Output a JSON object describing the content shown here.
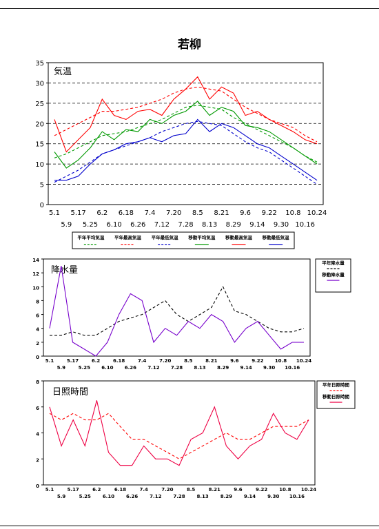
{
  "title": "若柳",
  "chart_data": [
    {
      "type": "line",
      "title": "気温",
      "ylim": [
        0,
        35
      ],
      "yticks": [
        0,
        5,
        10,
        15,
        20,
        25,
        30,
        35
      ],
      "x": [
        "5.1",
        "5.9",
        "5.17",
        "5.25",
        "6.2",
        "6.10",
        "6.18",
        "6.26",
        "7.4",
        "7.12",
        "7.20",
        "7.28",
        "8.5",
        "8.13",
        "8.21",
        "8.29",
        "9.6",
        "9.14",
        "9.22",
        "9.30",
        "10.8",
        "10.16",
        "10.24"
      ],
      "xlabels_row1": [
        "5.1",
        "5.17",
        "6.2",
        "6.18",
        "7.4",
        "7.20",
        "8.5",
        "8.21",
        "9.6",
        "9.22",
        "10.8",
        "10.24"
      ],
      "xlabels_row2": [
        "5.9",
        "5.25",
        "6.10",
        "6.26",
        "7.12",
        "7.28",
        "8.13",
        "8.29",
        "9.14",
        "9.30",
        "10.16"
      ],
      "grid": "horizontal dashed",
      "legend": "bottom",
      "series": [
        {
          "name": "平年平均気温",
          "style": "dashed",
          "color": "#009900",
          "values": [
            11.5,
            12.5,
            14,
            15.5,
            17,
            17.5,
            18,
            19,
            20,
            21,
            22.5,
            24,
            24.5,
            24,
            23.5,
            21.5,
            20,
            18.5,
            17,
            15.5,
            14,
            12,
            10.5
          ]
        },
        {
          "name": "平年最高気温",
          "style": "dashed",
          "color": "#ff0000",
          "values": [
            17,
            18.5,
            20,
            21.5,
            23,
            23,
            23.5,
            24,
            25,
            26,
            27.5,
            28.5,
            29,
            28.5,
            28,
            26,
            24,
            22.5,
            21,
            20,
            19,
            17,
            15.5
          ]
        },
        {
          "name": "平年最低気温",
          "style": "dashed",
          "color": "#0000cc",
          "values": [
            5.5,
            7,
            8.5,
            10.5,
            12.5,
            13.5,
            14.5,
            15.5,
            16.5,
            18,
            19,
            20,
            20.5,
            20,
            19.5,
            17.5,
            15.5,
            14,
            13,
            11,
            9,
            7,
            5
          ]
        },
        {
          "name": "移動平均気温",
          "style": "solid",
          "color": "#009900",
          "values": [
            13,
            9,
            11,
            14,
            18,
            16,
            18.5,
            18,
            21,
            20,
            22,
            23,
            25.5,
            22,
            24,
            23,
            19.5,
            19,
            18,
            16,
            14,
            12,
            10
          ]
        },
        {
          "name": "移動最高気温",
          "style": "solid",
          "color": "#ff0000",
          "values": [
            21,
            13,
            16,
            19,
            26,
            22,
            21,
            23,
            23.5,
            22,
            26,
            28.5,
            31.5,
            26,
            29,
            27.5,
            22,
            23,
            21,
            19.5,
            18,
            16,
            15
          ]
        },
        {
          "name": "移動最低気温",
          "style": "solid",
          "color": "#0000cc",
          "values": [
            6,
            6,
            7,
            10,
            12.5,
            13.5,
            15,
            15.5,
            16.5,
            15.5,
            17,
            17.5,
            21,
            18,
            20,
            19,
            17,
            15,
            14,
            12,
            10,
            8,
            6
          ]
        }
      ]
    },
    {
      "type": "line",
      "title": "降水量",
      "ylim": [
        0,
        14
      ],
      "yticks": [
        0,
        2,
        4,
        6,
        8,
        10,
        12,
        14
      ],
      "x": [
        "5.1",
        "5.9",
        "5.17",
        "5.25",
        "6.2",
        "6.10",
        "6.18",
        "6.26",
        "7.4",
        "7.12",
        "7.20",
        "7.28",
        "8.5",
        "8.13",
        "8.21",
        "8.29",
        "9.6",
        "9.14",
        "9.22",
        "9.30",
        "10.8",
        "10.16",
        "10.24"
      ],
      "xlabels_row1": [
        "5.1",
        "5.17",
        "6.2",
        "6.18",
        "7.4",
        "7.20",
        "8.5",
        "8.21",
        "9.6",
        "9.22",
        "10.8",
        "10.24"
      ],
      "xlabels_row2": [
        "5.9",
        "5.25",
        "6.10",
        "6.26",
        "7.12",
        "7.28",
        "8.13",
        "8.29",
        "9.14",
        "9.30",
        "10.16"
      ],
      "legend": "right",
      "series": [
        {
          "name": "平年降水量",
          "style": "dashed",
          "color": "#000000",
          "values": [
            3,
            3,
            3.5,
            3,
            3,
            4,
            5,
            5.5,
            6,
            7,
            8,
            6,
            5,
            6,
            7,
            10,
            6.5,
            6,
            5,
            4,
            3.5,
            3.5,
            4
          ]
        },
        {
          "name": "移動降水量",
          "style": "solid",
          "color": "#7700cc",
          "values": [
            4,
            13,
            2,
            1,
            0,
            2,
            6,
            9,
            8,
            2,
            4,
            3,
            5,
            4,
            6,
            5,
            2,
            4,
            5,
            3,
            1,
            2,
            2
          ]
        }
      ]
    },
    {
      "type": "line",
      "title": "日照時間",
      "ylim": [
        0,
        8
      ],
      "yticks": [
        0,
        2,
        4,
        6,
        8
      ],
      "x": [
        "5.1",
        "5.9",
        "5.17",
        "5.25",
        "6.2",
        "6.10",
        "6.18",
        "6.26",
        "7.4",
        "7.12",
        "7.20",
        "7.28",
        "8.5",
        "8.13",
        "8.21",
        "8.29",
        "9.6",
        "9.14",
        "9.22",
        "9.30",
        "10.8",
        "10.16",
        "10.24"
      ],
      "xlabels_row1": [
        "5.1",
        "5.17",
        "6.2",
        "6.18",
        "7.4",
        "7.20",
        "8.5",
        "8.21",
        "9.6",
        "9.22",
        "10.8",
        "10.24"
      ],
      "xlabels_row2": [
        "5.9",
        "5.25",
        "6.10",
        "6.26",
        "7.12",
        "7.28",
        "8.13",
        "8.29",
        "9.14",
        "9.30",
        "10.16"
      ],
      "legend": "right",
      "series": [
        {
          "name": "平年日照時間",
          "style": "dashed",
          "color": "#ff0000",
          "values": [
            5.5,
            5,
            5.5,
            5,
            5,
            5.5,
            4.5,
            3.5,
            3.5,
            3,
            2.5,
            2,
            2.5,
            3,
            3.5,
            4,
            3.5,
            3.5,
            4,
            4.5,
            4.5,
            4.5,
            5
          ]
        },
        {
          "name": "移動日照時間",
          "style": "solid",
          "color": "#ee0044",
          "values": [
            6,
            3,
            5,
            3,
            6.5,
            2.5,
            1.5,
            1.5,
            3,
            2,
            2,
            1.5,
            3.5,
            4,
            6,
            3,
            2,
            3,
            3.5,
            5.5,
            4,
            3.5,
            5
          ]
        }
      ]
    }
  ]
}
